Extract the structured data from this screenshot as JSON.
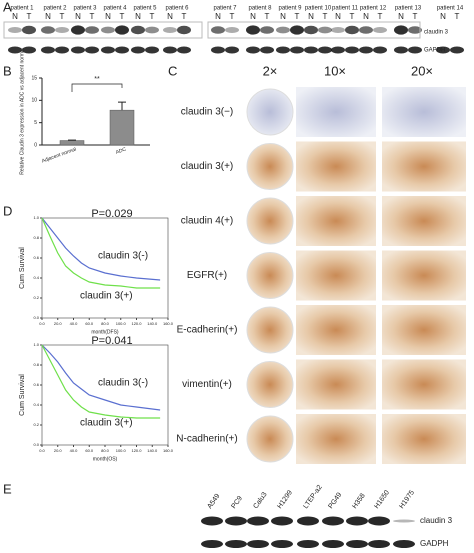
{
  "panel_labels": [
    "A",
    "B",
    "C",
    "D",
    "E"
  ],
  "blot_a": {
    "patients": [
      "patient 1",
      "patient 2",
      "patient 3",
      "patient 4",
      "patient 5",
      "patient 6",
      "patient 7",
      "patient 8",
      "patient 9",
      "patient 10",
      "patient 11",
      "patient 12",
      "patient 13",
      "patient 14"
    ],
    "lanes": [
      "N",
      "T"
    ],
    "rows": [
      "claudin 3",
      "GAPDH"
    ]
  },
  "chart_data": [
    {
      "type": "bar",
      "ylabel": "Relative Claudin 3 expression in ADC vs adjacent normal",
      "categories": [
        "Adjacent normal",
        "ADC"
      ],
      "values": [
        1,
        7.8
      ],
      "errors": [
        0.1,
        1.8
      ],
      "color": "#8c8c8c",
      "ylim": [
        0,
        15
      ],
      "yticks": [
        0,
        5,
        10,
        15
      ],
      "annotation": "**"
    },
    {
      "type": "line",
      "title": "P=0.029",
      "xlabel": "month(DFS)",
      "ylabel": "Cum Survival",
      "xlim": [
        0,
        160
      ],
      "ylim": [
        0,
        1
      ],
      "xticks": [
        {
          "value": 0,
          "label": "0.0"
        },
        {
          "value": 20,
          "label": "20.0"
        },
        {
          "value": 40,
          "label": "40.0"
        },
        {
          "value": 60,
          "label": "60.0"
        },
        {
          "value": 80,
          "label": "80.0"
        },
        {
          "value": 100,
          "label": "100.0"
        },
        {
          "value": 120,
          "label": "120.0"
        },
        {
          "value": 140,
          "label": "140.0"
        },
        {
          "value": 160,
          "label": "160.0"
        }
      ],
      "yticks": [
        {
          "value": 0,
          "label": "0.0"
        },
        {
          "value": 0.2,
          "label": "0.2"
        },
        {
          "value": 0.4,
          "label": "0.4"
        },
        {
          "value": 0.6,
          "label": "0.6"
        },
        {
          "value": 0.8,
          "label": "0.8"
        },
        {
          "value": 1,
          "label": "1.0"
        }
      ],
      "x": [
        0,
        10,
        20,
        30,
        40,
        50,
        60,
        80,
        100,
        120,
        150
      ],
      "series": [
        {
          "name": "claudin 3(-)",
          "color": "#5a6fd0",
          "values": [
            1,
            0.9,
            0.8,
            0.7,
            0.62,
            0.55,
            0.5,
            0.45,
            0.42,
            0.4,
            0.38
          ]
        },
        {
          "name": "claudin 3(+)",
          "color": "#6fe04a",
          "values": [
            1,
            0.82,
            0.65,
            0.52,
            0.45,
            0.4,
            0.36,
            0.33,
            0.32,
            0.3,
            0.3
          ]
        }
      ]
    },
    {
      "type": "line",
      "title": "P=0.041",
      "xlabel": "month(OS)",
      "ylabel": "Cum Survival",
      "xlim": [
        0,
        160
      ],
      "ylim": [
        0,
        1
      ],
      "xticks": [
        {
          "value": 0,
          "label": "0.0"
        },
        {
          "value": 20,
          "label": "20.0"
        },
        {
          "value": 40,
          "label": "40.0"
        },
        {
          "value": 60,
          "label": "60.0"
        },
        {
          "value": 80,
          "label": "80.0"
        },
        {
          "value": 100,
          "label": "100.0"
        },
        {
          "value": 120,
          "label": "120.0"
        },
        {
          "value": 140,
          "label": "140.0"
        },
        {
          "value": 160,
          "label": "160.0"
        }
      ],
      "yticks": [
        {
          "value": 0,
          "label": "0.0"
        },
        {
          "value": 0.2,
          "label": "0.2"
        },
        {
          "value": 0.4,
          "label": "0.4"
        },
        {
          "value": 0.6,
          "label": "0.6"
        },
        {
          "value": 0.8,
          "label": "0.8"
        },
        {
          "value": 1,
          "label": "1.0"
        }
      ],
      "x": [
        0,
        10,
        20,
        30,
        40,
        50,
        60,
        80,
        100,
        120,
        150
      ],
      "series": [
        {
          "name": "claudin 3(-)",
          "color": "#5a6fd0",
          "values": [
            1,
            0.92,
            0.83,
            0.72,
            0.62,
            0.56,
            0.5,
            0.45,
            0.4,
            0.38,
            0.35
          ]
        },
        {
          "name": "claudin 3(+)",
          "color": "#6fe04a",
          "values": [
            1,
            0.85,
            0.7,
            0.55,
            0.45,
            0.38,
            0.33,
            0.3,
            0.28,
            0.27,
            0.27
          ]
        }
      ]
    }
  ],
  "ihc": {
    "magnifications": [
      "2×",
      "10×",
      "20×"
    ],
    "rows": [
      "claudin 3(−)",
      "claudin 3(+)",
      "claudin 4(+)",
      "EGFR(+)",
      "E-cadherin(+)",
      "vimentin(+)",
      "N-cadherin(+)"
    ]
  },
  "blot_e": {
    "cell_lines": [
      "A549",
      "PC9",
      "Calu3",
      "H1299",
      "LTEP-a2",
      "PG49",
      "H358",
      "H1650",
      "H1975"
    ],
    "rows": [
      "claudin 3",
      "GADPH"
    ]
  }
}
